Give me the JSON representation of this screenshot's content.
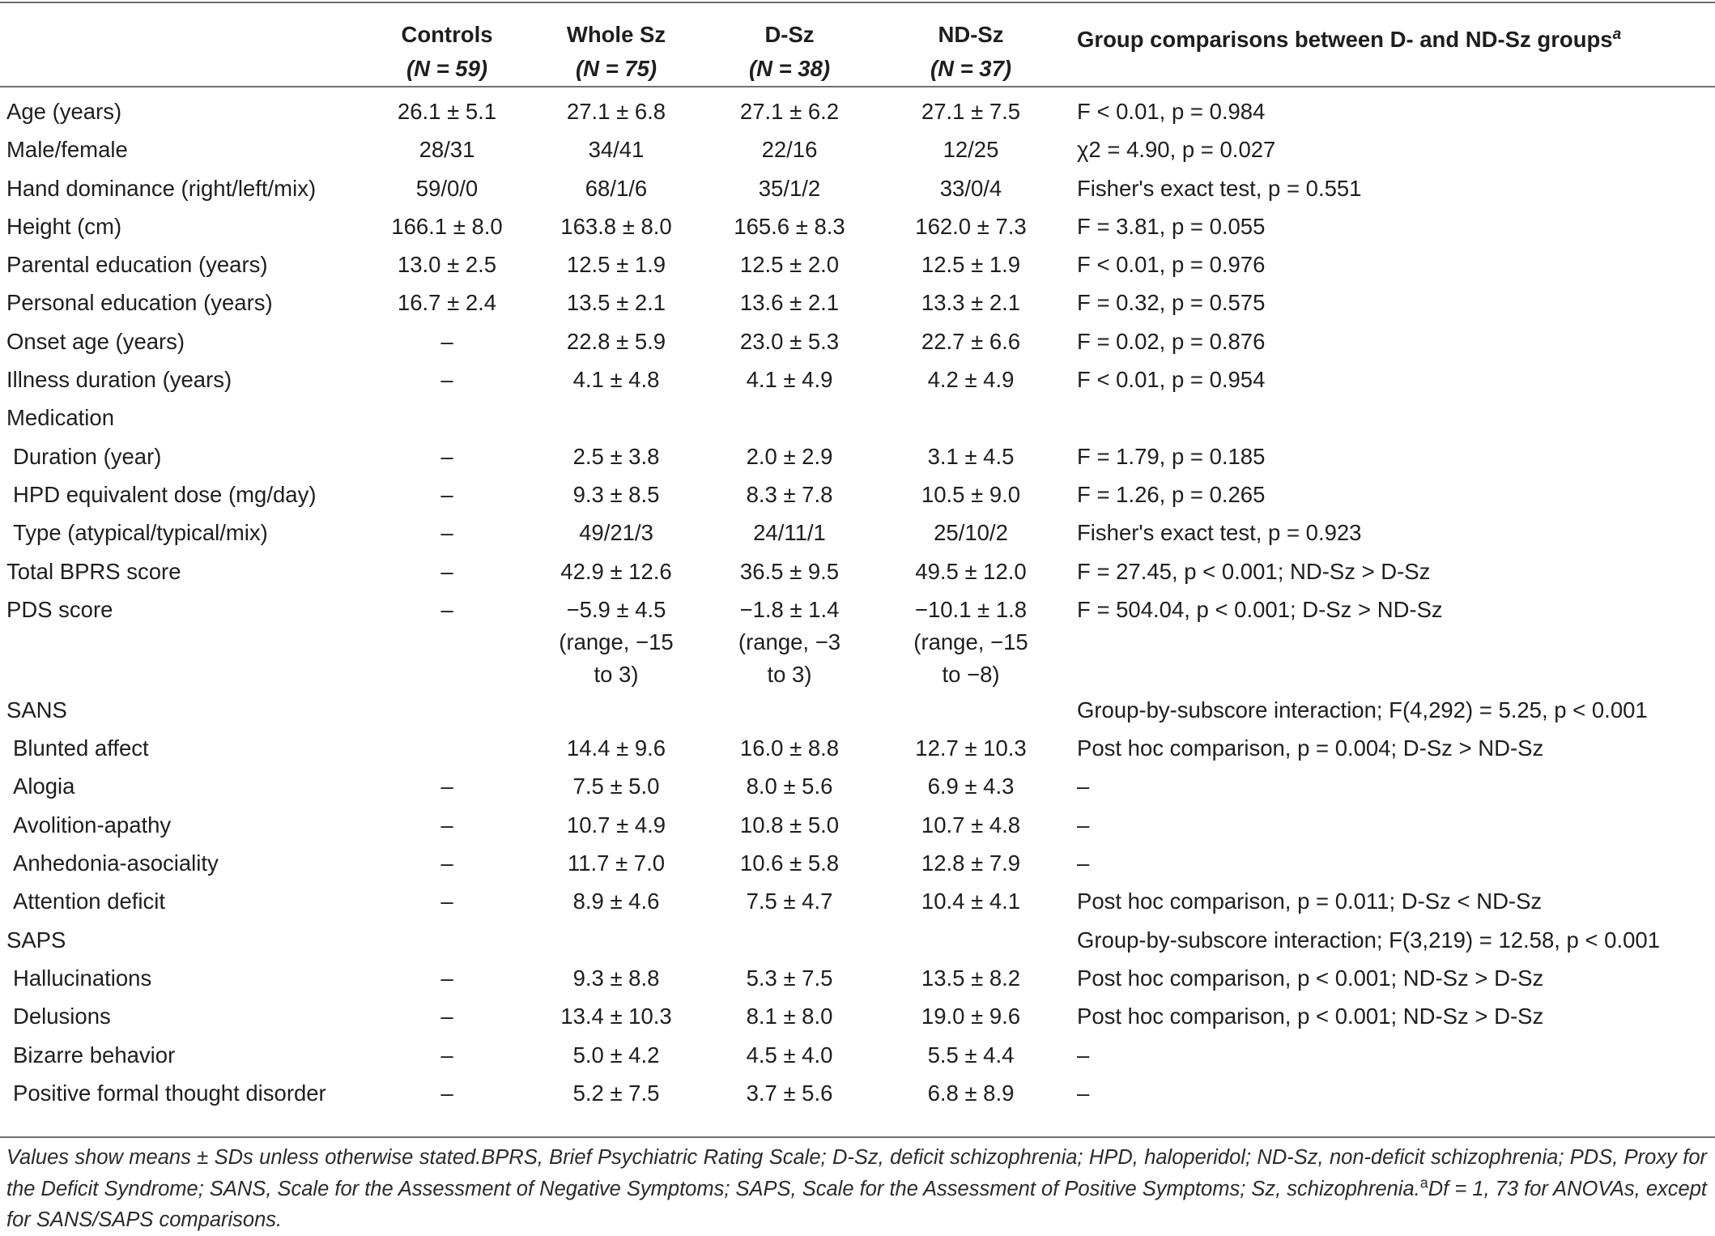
{
  "header": {
    "col_controls": "Controls",
    "col_controls_n": "(N = 59)",
    "col_whole": "Whole Sz",
    "col_whole_n": "(N = 75)",
    "col_dsz": "D-Sz",
    "col_dsz_n": "(N = 38)",
    "col_ndsz": "ND-Sz",
    "col_ndsz_n": "(N = 37)",
    "col_comparison": "Group comparisons between D- and ND-Sz groups",
    "col_comparison_sup": "a"
  },
  "rows": [
    {
      "label": "Age (years)",
      "controls": "26.1 ± 5.1",
      "whole": "27.1 ± 6.8",
      "dsz": "27.1 ± 6.2",
      "ndsz": "27.1 ± 7.5",
      "cmp": "F < 0.01, p = 0.984"
    },
    {
      "label": "Male/female",
      "controls": "28/31",
      "whole": "34/41",
      "dsz": "22/16",
      "ndsz": "12/25",
      "cmp": "χ2 = 4.90, p = 0.027"
    },
    {
      "label": "Hand dominance (right/left/mix)",
      "controls": "59/0/0",
      "whole": "68/1/6",
      "dsz": "35/1/2",
      "ndsz": "33/0/4",
      "cmp": "Fisher's exact test, p = 0.551"
    },
    {
      "label": "Height (cm)",
      "controls": "166.1 ± 8.0",
      "whole": "163.8 ± 8.0",
      "dsz": "165.6 ± 8.3",
      "ndsz": "162.0 ± 7.3",
      "cmp": "F = 3.81, p = 0.055"
    },
    {
      "label": "Parental education (years)",
      "controls": "13.0 ± 2.5",
      "whole": "12.5 ± 1.9",
      "dsz": "12.5 ± 2.0",
      "ndsz": "12.5 ± 1.9",
      "cmp": "F < 0.01, p = 0.976"
    },
    {
      "label": "Personal education (years)",
      "controls": "16.7 ± 2.4",
      "whole": "13.5 ± 2.1",
      "dsz": "13.6 ± 2.1",
      "ndsz": "13.3 ± 2.1",
      "cmp": "F = 0.32, p = 0.575"
    },
    {
      "label": "Onset age (years)",
      "controls": "–",
      "whole": "22.8 ± 5.9",
      "dsz": "23.0 ± 5.3",
      "ndsz": "22.7 ± 6.6",
      "cmp": "F = 0.02, p = 0.876"
    },
    {
      "label": "Illness duration (years)",
      "controls": "–",
      "whole": "4.1 ± 4.8",
      "dsz": "4.1 ± 4.9",
      "ndsz": "4.2 ± 4.9",
      "cmp": "F < 0.01, p = 0.954"
    },
    {
      "label": "Medication",
      "controls": "",
      "whole": "",
      "dsz": "",
      "ndsz": "",
      "cmp": ""
    },
    {
      "label": "Duration (year)",
      "sub": true,
      "controls": "–",
      "whole": "2.5 ± 3.8",
      "dsz": "2.0 ± 2.9",
      "ndsz": "3.1 ± 4.5",
      "cmp": "F = 1.79, p = 0.185"
    },
    {
      "label": "HPD equivalent dose (mg/day)",
      "sub": true,
      "controls": "–",
      "whole": "9.3 ± 8.5",
      "dsz": "8.3 ± 7.8",
      "ndsz": "10.5 ± 9.0",
      "cmp": "F = 1.26, p = 0.265"
    },
    {
      "label": "Type (atypical/typical/mix)",
      "sub": true,
      "controls": "–",
      "whole": "49/21/3",
      "dsz": "24/11/1",
      "ndsz": "25/10/2",
      "cmp": "Fisher's exact test, p = 0.923"
    },
    {
      "label": "Total BPRS score",
      "controls": "–",
      "whole": "42.9 ± 12.6",
      "dsz": "36.5 ± 9.5",
      "ndsz": "49.5 ± 12.0",
      "cmp": "F = 27.45, p < 0.001; ND-Sz > D-Sz"
    },
    {
      "label": "PDS score",
      "controls": "–",
      "whole": "−5.9 ± 4.5\n(range, −15\nto 3)",
      "dsz": "−1.8 ± 1.4\n(range, −3\nto 3)",
      "ndsz": "−10.1 ± 1.8\n(range, −15\nto −8)",
      "cmp": "F = 504.04, p < 0.001; D-Sz > ND-Sz",
      "multiline": true
    },
    {
      "label": "SANS",
      "controls": "",
      "whole": "",
      "dsz": "",
      "ndsz": "",
      "cmp": "Group-by-subscore interaction; F(4,292) = 5.25, p < 0.001"
    },
    {
      "label": "Blunted affect",
      "sub": true,
      "controls": "",
      "whole": "14.4 ± 9.6",
      "dsz": "16.0 ± 8.8",
      "ndsz": "12.7 ± 10.3",
      "cmp": "Post hoc comparison, p = 0.004; D-Sz > ND-Sz"
    },
    {
      "label": "Alogia",
      "sub": true,
      "controls": "–",
      "whole": "7.5 ± 5.0",
      "dsz": "8.0 ± 5.6",
      "ndsz": "6.9 ± 4.3",
      "cmp": "–"
    },
    {
      "label": "Avolition-apathy",
      "sub": true,
      "controls": "–",
      "whole": "10.7 ± 4.9",
      "dsz": "10.8 ± 5.0",
      "ndsz": "10.7 ± 4.8",
      "cmp": "–"
    },
    {
      "label": "Anhedonia-asociality",
      "sub": true,
      "controls": "–",
      "whole": "11.7 ± 7.0",
      "dsz": "10.6 ± 5.8",
      "ndsz": "12.8 ± 7.9",
      "cmp": "–"
    },
    {
      "label": "Attention deficit",
      "sub": true,
      "controls": "–",
      "whole": "8.9 ± 4.6",
      "dsz": "7.5 ± 4.7",
      "ndsz": "10.4 ± 4.1",
      "cmp": "Post hoc comparison, p = 0.011; D-Sz < ND-Sz"
    },
    {
      "label": "SAPS",
      "controls": "",
      "whole": "",
      "dsz": "",
      "ndsz": "",
      "cmp": "Group-by-subscore interaction; F(3,219) = 12.58, p < 0.001"
    },
    {
      "label": "Hallucinations",
      "sub": true,
      "controls": "–",
      "whole": "9.3 ± 8.8",
      "dsz": "5.3 ± 7.5",
      "ndsz": "13.5 ± 8.2",
      "cmp": "Post hoc comparison, p < 0.001; ND-Sz > D-Sz"
    },
    {
      "label": "Delusions",
      "sub": true,
      "controls": "–",
      "whole": "13.4 ± 10.3",
      "dsz": "8.1 ± 8.0",
      "ndsz": "19.0 ± 9.6",
      "cmp": "Post hoc comparison, p < 0.001; ND-Sz > D-Sz"
    },
    {
      "label": "Bizarre behavior",
      "sub": true,
      "controls": "–",
      "whole": "5.0 ± 4.2",
      "dsz": "4.5 ± 4.0",
      "ndsz": "5.5 ± 4.4",
      "cmp": "–"
    },
    {
      "label": "Positive formal thought disorder",
      "sub": true,
      "controls": "–",
      "whole": "5.2 ± 7.5",
      "dsz": "3.7 ± 5.6",
      "ndsz": "6.8 ± 8.9",
      "cmp": "–"
    }
  ],
  "footnote": {
    "main": "Values show means ± SDs unless otherwise stated.BPRS, Brief Psychiatric Rating Scale; D-Sz, deficit schizophrenia; HPD, haloperidol; ND-Sz, non-deficit schizophrenia; PDS, Proxy for the Deficit Syndrome; SANS, Scale for the Assessment of Negative Symptoms; SAPS, Scale for the Assessment of Positive Symptoms; Sz, schizophrenia.",
    "sup": "a",
    "tail": "Df = 1, 73 for ANOVAs, except for SANS/SAPS comparisons."
  }
}
